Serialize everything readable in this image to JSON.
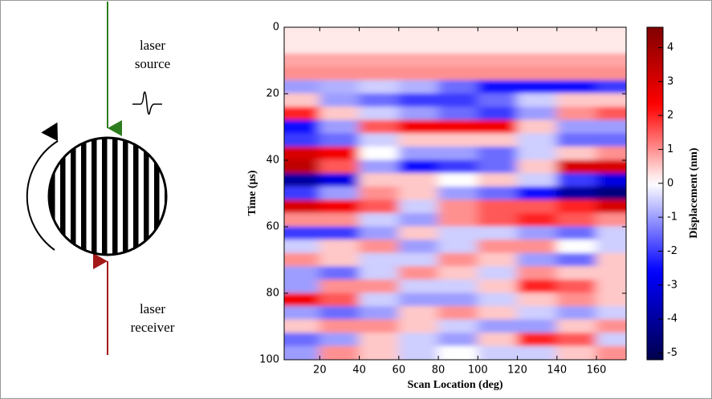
{
  "diagram": {
    "source_label": [
      "laser",
      "source"
    ],
    "receiver_label": [
      "laser",
      "receiver"
    ]
  },
  "chart_data": {
    "type": "heatmap",
    "x_label": "Scan Location (deg)",
    "y_label": "Time (μs)",
    "colorbar_label": "Displacement (nm)",
    "xlim": [
      2,
      175
    ],
    "xticks": [
      20,
      40,
      60,
      80,
      100,
      120,
      140,
      160
    ],
    "ylim": [
      100,
      0
    ],
    "yticks": [
      0,
      20,
      40,
      60,
      80,
      100
    ],
    "clim": [
      -5.2,
      4.6
    ],
    "cticks": [
      -5,
      -4,
      -3,
      -2,
      -1,
      0,
      1,
      2,
      3,
      4
    ],
    "colormap": [
      "#00004c",
      "#0000ff",
      "#ffffff",
      "#ff0000",
      "#800000"
    ],
    "x": [
      10,
      30,
      50,
      70,
      90,
      110,
      130,
      150,
      170
    ],
    "y": [
      2,
      6,
      10,
      14,
      18,
      22,
      26,
      30,
      34,
      38,
      42,
      46,
      50,
      54,
      58,
      62,
      66,
      70,
      74,
      78,
      82,
      86,
      90,
      94,
      98
    ],
    "z": [
      [
        0.2,
        0.2,
        0.2,
        0.2,
        0.2,
        0.2,
        0.2,
        0.2,
        0.2
      ],
      [
        0.2,
        0.2,
        0.2,
        0.2,
        0.2,
        0.2,
        0.2,
        0.2,
        0.2
      ],
      [
        0.8,
        0.8,
        0.8,
        0.8,
        0.8,
        0.8,
        0.8,
        0.8,
        0.8
      ],
      [
        1,
        1,
        1,
        1,
        1,
        1,
        1,
        1,
        1
      ],
      [
        -1,
        -0.8,
        -0.5,
        -0.8,
        -1.5,
        -2.5,
        -2.5,
        -2.5,
        -2
      ],
      [
        0.5,
        -1,
        -1.5,
        -2,
        -2,
        -1.5,
        -0.5,
        0.5,
        0.5
      ],
      [
        2,
        0.5,
        -0.5,
        -1,
        -1.5,
        -2,
        -1,
        1,
        1.5
      ],
      [
        -2.5,
        -1,
        1.5,
        2.5,
        2.5,
        2.5,
        0.5,
        -1,
        -1
      ],
      [
        -2,
        -1.5,
        -0.5,
        0.5,
        0.5,
        0.5,
        -0.5,
        -1.5,
        -1.5
      ],
      [
        3,
        2.5,
        0,
        -1,
        -1,
        -1.5,
        -0.5,
        0.5,
        1
      ],
      [
        3.5,
        1.5,
        -1,
        -2.5,
        -2,
        -1.5,
        0.5,
        3,
        3
      ],
      [
        -4,
        -3,
        0.5,
        0.5,
        0,
        0.5,
        -0.5,
        -2,
        -3
      ],
      [
        -2,
        -1,
        1,
        0.5,
        -1,
        -1.5,
        -2.5,
        -4,
        -4.5
      ],
      [
        3,
        2.5,
        1.5,
        -0.5,
        1,
        1.5,
        1.5,
        2,
        3
      ],
      [
        1,
        1,
        -0.5,
        -1,
        1,
        1.5,
        2,
        1.5,
        1
      ],
      [
        -2,
        -2,
        -1,
        0.5,
        -0.5,
        -0.5,
        -1,
        -1.5,
        -0.5
      ],
      [
        -0.5,
        0.5,
        1,
        -1,
        -0.5,
        1,
        1,
        0,
        -0.5
      ],
      [
        1,
        0.5,
        -0.5,
        -0.5,
        1,
        0.5,
        -1,
        -1.5,
        0.5
      ],
      [
        -1,
        -1.5,
        -0.5,
        1,
        0.5,
        -0.5,
        1,
        0.5,
        0.5
      ],
      [
        -1,
        1,
        1,
        -0.5,
        -0.5,
        0.5,
        2,
        1.5,
        0.5
      ],
      [
        2.5,
        1.5,
        -0.5,
        -1,
        -1,
        -0.5,
        0.5,
        1,
        0.5
      ],
      [
        -1,
        -1.5,
        -1,
        0.5,
        1,
        0.5,
        -0.5,
        -1,
        -0.5
      ],
      [
        0.5,
        1,
        1,
        0.5,
        -0.5,
        -1,
        -1,
        0.5,
        1
      ],
      [
        -1.5,
        -1,
        0.5,
        -0.5,
        -1,
        0.5,
        2,
        1.5,
        -0.5
      ],
      [
        -1,
        1,
        0.5,
        -0.5,
        0,
        -0.5,
        -0.5,
        0.5,
        1
      ]
    ]
  }
}
